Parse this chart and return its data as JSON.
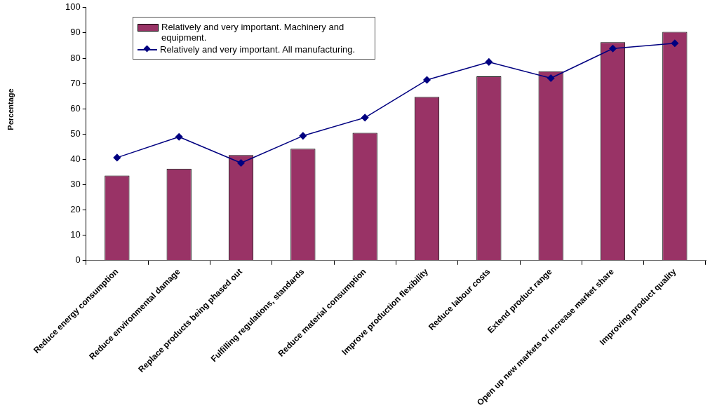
{
  "chart_data": {
    "type": "bar",
    "ylabel": "Percentage",
    "categories": [
      "Reduce energy consumption",
      "Reduce environmental damage",
      "Replace products being phased out",
      "Fulfilling regulations, standards",
      "Reduce material consumption",
      "Improve production flexibility",
      "Reduce labour costs",
      "Extend product range",
      "Open up new markets or increase market share",
      "Improving product quality"
    ],
    "series": [
      {
        "name": "Relatively and very important. Machinery and equipment.",
        "color": "#993366",
        "values": [
          33.6,
          36.3,
          41.7,
          44.2,
          50.5,
          64.7,
          72.8,
          74.8,
          86.3,
          90.4
        ]
      },
      {
        "name": "Relatively and very important. All manufacturing.",
        "type": "line",
        "color": "#000080",
        "values": [
          40.7,
          48.9,
          38.6,
          49.3,
          56.5,
          71.4,
          78.5,
          72.1,
          83.8,
          85.9
        ]
      }
    ],
    "ylim": [
      0,
      100
    ],
    "yticks": [
      0,
      10,
      20,
      30,
      40,
      50,
      60,
      70,
      80,
      90,
      100
    ],
    "grid": false,
    "legend": "top left",
    "marker": "diamond",
    "line_style": "solid"
  }
}
